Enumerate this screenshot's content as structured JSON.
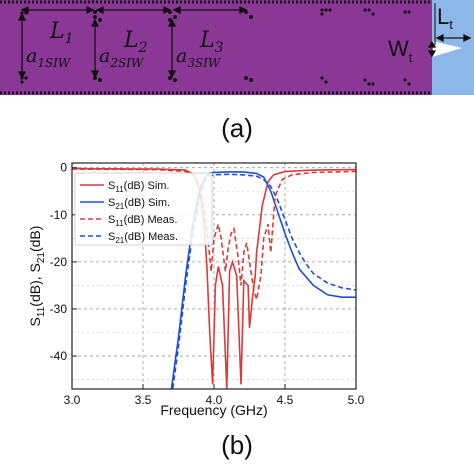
{
  "figure_a": {
    "caption": "(a)",
    "labels": {
      "L1_main": "L",
      "L1_sub": "1",
      "L2_main": "L",
      "L2_sub": "2",
      "L3_main": "L",
      "L3_sub": "3",
      "a1_main": "a",
      "a1_sub": "1SIW",
      "a2_main": "a",
      "a2_sub": "2SIW",
      "a3_main": "a",
      "a3_sub": "3SIW",
      "Wt_main": "W",
      "Wt_sub": "t",
      "Lt_main": "L",
      "Lt_sub": "t"
    },
    "colors": {
      "substrate": "#8a3796",
      "taper": "#8db7e8",
      "vias": "#151515"
    }
  },
  "figure_b": {
    "caption": "(b)",
    "chart_data": {
      "type": "line",
      "xlabel": "Frequency (GHz)",
      "ylabel_parts": [
        "S",
        "11",
        "(dB),  S",
        "21",
        "(dB)"
      ],
      "xlim": [
        3.0,
        5.0
      ],
      "ylim": [
        -47,
        1
      ],
      "xticks": [
        "3.0",
        "3.5",
        "4.0",
        "4.5",
        "5.0"
      ],
      "yticks": [
        "0",
        "-10",
        "-20",
        "-30",
        "-40"
      ],
      "grid": true,
      "legend_position": "top-left",
      "legend": [
        {
          "main": "S",
          "sub": "11",
          "rest": "(dB) Sim."
        },
        {
          "main": "S",
          "sub": "21",
          "rest": "(dB) Sim."
        },
        {
          "main": "S",
          "sub": "11",
          "rest": "(dB) Meas."
        },
        {
          "main": "S",
          "sub": "21",
          "rest": "(dB) Meas."
        }
      ],
      "series": [
        {
          "color": "#d93b3b",
          "dash": "solid",
          "x": [
            3.0,
            3.6,
            3.8,
            3.86,
            3.9,
            3.93,
            3.95,
            3.97,
            3.99,
            4.01,
            4.03,
            4.06,
            4.09,
            4.11,
            4.13,
            4.16,
            4.19,
            4.21,
            4.24,
            4.25,
            4.27,
            4.29,
            4.3,
            4.34,
            4.38,
            4.42,
            4.5,
            4.7,
            5.0
          ],
          "y": [
            -0.2,
            -0.3,
            -0.5,
            -1.5,
            -5,
            -12,
            -21,
            -35,
            -46,
            -25,
            -21,
            -25,
            -47,
            -22,
            -20,
            -23,
            -46,
            -24,
            -25,
            -34,
            -28,
            -23,
            -18,
            -8,
            -3,
            -1.5,
            -0.8,
            -0.5,
            -0.4
          ]
        },
        {
          "color": "#1f4fd6",
          "dash": "solid",
          "x": [
            3.6,
            3.7,
            3.75,
            3.8,
            3.85,
            3.9,
            3.94,
            3.96,
            3.98,
            4.0,
            4.1,
            4.2,
            4.3,
            4.35,
            4.4,
            4.45,
            4.5,
            4.55,
            4.6,
            4.7,
            4.8,
            4.9,
            5.0
          ],
          "y": [
            -60,
            -47,
            -36,
            -23,
            -12,
            -4.5,
            -2,
            -1.3,
            -1.1,
            -1.0,
            -0.9,
            -0.9,
            -1.2,
            -2,
            -5,
            -9.5,
            -14,
            -18,
            -21.5,
            -25,
            -27,
            -27.5,
            -27.5
          ]
        },
        {
          "color": "#d93b3b",
          "dash": "dashed",
          "x": [
            3.0,
            3.6,
            3.8,
            3.86,
            3.9,
            3.93,
            3.96,
            3.98,
            4.0,
            4.03,
            4.05,
            4.08,
            4.1,
            4.12,
            4.14,
            4.17,
            4.19,
            4.21,
            4.23,
            4.25,
            4.28,
            4.3,
            4.33,
            4.35,
            4.38,
            4.4,
            4.43,
            4.48,
            4.55,
            4.7,
            5.0
          ],
          "y": [
            -0.3,
            -0.4,
            -0.8,
            -1.5,
            -4,
            -9,
            -16,
            -22,
            -15,
            -12,
            -15,
            -22,
            -17,
            -14,
            -13,
            -19,
            -25,
            -18,
            -16,
            -20,
            -26,
            -28,
            -23,
            -15,
            -12,
            -18,
            -6,
            -2.5,
            -1.5,
            -1,
            -0.8
          ]
        },
        {
          "color": "#1f4fd6",
          "dash": "dashed",
          "x": [
            3.6,
            3.7,
            3.75,
            3.8,
            3.85,
            3.9,
            3.93,
            3.96,
            4.0,
            4.1,
            4.2,
            4.3,
            4.35,
            4.4,
            4.45,
            4.5,
            4.55,
            4.6,
            4.65,
            4.7,
            4.8,
            4.9,
            5.0
          ],
          "y": [
            -60,
            -49,
            -38,
            -25,
            -14,
            -6,
            -3,
            -1.8,
            -1.5,
            -1.4,
            -1.5,
            -1.8,
            -2.5,
            -4,
            -7,
            -11,
            -15,
            -18,
            -20.5,
            -22.5,
            -24.5,
            -25.5,
            -26
          ]
        }
      ]
    }
  }
}
